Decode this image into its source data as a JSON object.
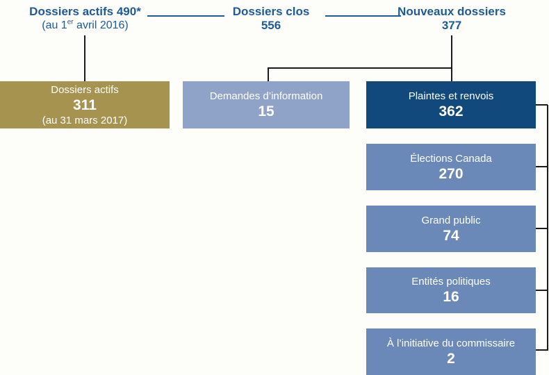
{
  "headers": {
    "actifs_debut": {
      "title": "Dossiers actifs 490*",
      "sub_pre": "(au 1",
      "sub_sup": "er",
      "sub_post": " avril 2016)"
    },
    "clos": {
      "title": "Dossiers clos",
      "value": "556"
    },
    "nouveaux": {
      "title": "Nouveaux dossiers",
      "value": "377"
    }
  },
  "boxes": {
    "actifs_fin": {
      "label": "Dossiers actifs",
      "value": "311",
      "note": "(au 31 mars 2017)"
    },
    "demandes": {
      "label": "Demandes d’information",
      "value": "15"
    },
    "plaintes": {
      "label": "Plaintes et renvois",
      "value": "362"
    },
    "sources": [
      {
        "label": "Élections Canada",
        "value": "270"
      },
      {
        "label": "Grand public",
        "value": "74"
      },
      {
        "label": "Entités politiques",
        "value": "16"
      },
      {
        "label": "À l’initiative du commissaire",
        "value": "2"
      }
    ]
  },
  "colors": {
    "header_text": "#1d5a96",
    "header_rule": "#1d5a96",
    "box_gold": "#a69350",
    "box_periwinkle": "#8fa3c8",
    "box_navy": "#11497d",
    "box_blue": "#6b89b8",
    "connector_line": "#1a1a1a",
    "box_text": "#ffffff",
    "background": "#fdfdfa"
  }
}
